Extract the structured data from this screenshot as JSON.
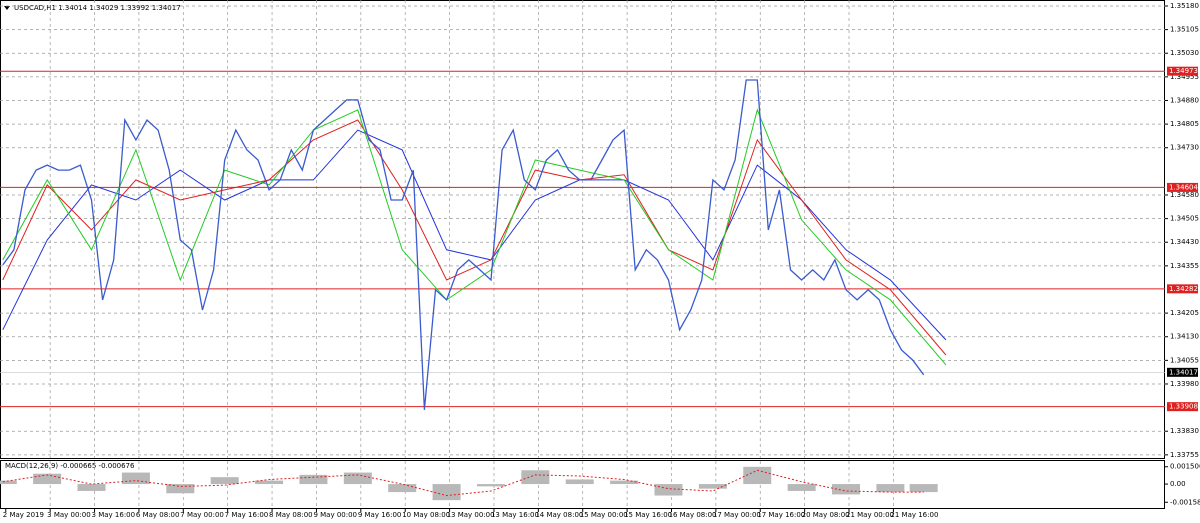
{
  "chart_data": {
    "type": "line",
    "title": "USDCAD,H1  1.34014 1.34029 1.33992 1.34017",
    "xlim": [
      0,
      420
    ],
    "ylim": [
      1.33745,
      1.35199
    ],
    "yticks": [
      {
        "value": 1.3518,
        "label": "1.35180"
      },
      {
        "value": 1.35105,
        "label": "1.35105"
      },
      {
        "value": 1.3503,
        "label": "1.35030"
      },
      {
        "value": 1.34955,
        "label": "1.34955"
      },
      {
        "value": 1.3488,
        "label": "1.34880"
      },
      {
        "value": 1.34805,
        "label": "1.34805"
      },
      {
        "value": 1.3473,
        "label": "1.34730"
      },
      {
        "value": 1.3458,
        "label": "1.34580"
      },
      {
        "value": 1.34505,
        "label": "1.34505"
      },
      {
        "value": 1.3443,
        "label": "1.34430"
      },
      {
        "value": 1.34355,
        "label": "1.34355"
      },
      {
        "value": 1.34205,
        "label": "1.34205"
      },
      {
        "value": 1.3413,
        "label": "1.34130"
      },
      {
        "value": 1.34055,
        "label": "1.34055"
      },
      {
        "value": 1.3398,
        "label": "1.33980"
      },
      {
        "value": 1.3383,
        "label": "1.33830"
      },
      {
        "value": 1.33755,
        "label": "1.33755"
      }
    ],
    "xticks": [
      {
        "value": 1,
        "label": "2 May 2019"
      },
      {
        "value": 17,
        "label": "3 May 00:00"
      },
      {
        "value": 33,
        "label": "3 May 16:00"
      },
      {
        "value": 49,
        "label": "6 May 08:00"
      },
      {
        "value": 65,
        "label": "7 May 00:00"
      },
      {
        "value": 81,
        "label": "7 May 16:00"
      },
      {
        "value": 97,
        "label": "8 May 08:00"
      },
      {
        "value": 113,
        "label": "9 May 00:00"
      },
      {
        "value": 129,
        "label": "9 May 16:00"
      },
      {
        "value": 145,
        "label": "10 May 08:00"
      },
      {
        "value": 161,
        "label": "13 May 00:00"
      },
      {
        "value": 177,
        "label": "13 May 16:00"
      },
      {
        "value": 193,
        "label": "14 May 08:00"
      },
      {
        "value": 209,
        "label": "15 May 00:00"
      },
      {
        "value": 225,
        "label": "15 May 16:00"
      },
      {
        "value": 241,
        "label": "16 May 08:00"
      },
      {
        "value": 257,
        "label": "17 May 00:00"
      },
      {
        "value": 273,
        "label": "17 May 16:00"
      },
      {
        "value": 289,
        "label": "20 May 08:00"
      },
      {
        "value": 305,
        "label": "21 May 00:00"
      },
      {
        "value": 321,
        "label": "21 May 16:00"
      }
    ],
    "grid": true,
    "levels": [
      1.34973,
      1.34604,
      1.34282,
      1.33908
    ],
    "level_color": "#e02020",
    "last_price": 1.34017,
    "x": [
      1,
      5,
      9,
      13,
      17,
      21,
      25,
      29,
      33,
      37,
      41,
      45,
      49,
      53,
      57,
      61,
      65,
      69,
      73,
      77,
      81,
      85,
      89,
      93,
      97,
      101,
      105,
      109,
      113,
      117,
      121,
      125,
      129,
      133,
      137,
      141,
      145,
      149,
      153,
      157,
      161,
      165,
      169,
      173,
      177,
      181,
      185,
      189,
      193,
      197,
      201,
      205,
      209,
      213,
      217,
      221,
      225,
      229,
      233,
      237,
      241,
      245,
      249,
      253,
      257,
      261,
      265,
      269,
      273,
      277,
      281,
      285,
      289,
      293,
      297,
      301,
      305,
      309,
      313,
      317,
      321,
      325,
      329,
      333
    ],
    "series": [
      {
        "name": "USDCAD",
        "color": "#3a5bd0",
        "values": [
          1.34358,
          1.34406,
          1.34596,
          1.34659,
          1.34675,
          1.34659,
          1.34659,
          1.34675,
          1.34564,
          1.34247,
          1.34374,
          1.34818,
          1.34755,
          1.34818,
          1.34786,
          1.34659,
          1.34437,
          1.34406,
          1.34215,
          1.34342,
          1.34691,
          1.34786,
          1.34723,
          1.34691,
          1.34596,
          1.34628,
          1.34723,
          1.34659,
          1.34786,
          1.34818,
          1.3485,
          1.34882,
          1.34882,
          1.34755,
          1.34723,
          1.34564,
          1.34564,
          1.34659,
          1.33898,
          1.34279,
          1.34247,
          1.34342,
          1.34374,
          1.34342,
          1.3431,
          1.34723,
          1.34786,
          1.34628,
          1.34596,
          1.34691,
          1.34723,
          1.34659,
          1.34628,
          1.34628,
          1.34691,
          1.34755,
          1.34786,
          1.34342,
          1.34406,
          1.34374,
          1.3431,
          1.34152,
          1.34215,
          1.3431,
          1.34628,
          1.34596,
          1.34691,
          1.34945,
          1.34945,
          1.34469,
          1.34596,
          1.34342,
          1.3431,
          1.34342,
          1.3431,
          1.34374,
          1.34279,
          1.34247,
          1.34279,
          1.34247,
          1.34152,
          1.34088,
          1.34056,
          1.34009
        ]
      }
    ],
    "ma_x": [
      1,
      17,
      33,
      49,
      65,
      81,
      97,
      113,
      129,
      145,
      161,
      177,
      193,
      209,
      225,
      241,
      257,
      273,
      289,
      305,
      321,
      341
    ],
    "ma_series": [
      {
        "color": "#2233dd",
        "values": [
          1.34152,
          1.34437,
          1.34612,
          1.34564,
          1.34659,
          1.34564,
          1.34628,
          1.34628,
          1.34786,
          1.34723,
          1.34406,
          1.34374,
          1.34564,
          1.34628,
          1.34628,
          1.34564,
          1.34374,
          1.34675,
          1.34564,
          1.34406,
          1.3431,
          1.3412
        ]
      },
      {
        "color": "#e02020",
        "values": [
          1.3431,
          1.34612,
          1.34469,
          1.34628,
          1.34564,
          1.34596,
          1.34628,
          1.34755,
          1.34818,
          1.34596,
          1.3431,
          1.34374,
          1.34659,
          1.34628,
          1.34644,
          1.34406,
          1.34342,
          1.34755,
          1.34564,
          1.34374,
          1.34279,
          1.34072
        ]
      },
      {
        "color": "#22cc22",
        "values": [
          1.34374,
          1.34628,
          1.34406,
          1.34723,
          1.3431,
          1.34659,
          1.34612,
          1.34786,
          1.3485,
          1.34406,
          1.34247,
          1.34342,
          1.34691,
          1.34659,
          1.34628,
          1.34406,
          1.3431,
          1.3485,
          1.34501,
          1.34342,
          1.34247,
          1.34041
        ]
      }
    ],
    "macd": {
      "label": "MACD(12,26,9) -0.000665 -0.000676",
      "ylim": [
        -0.00217,
        0.002006
      ],
      "yticks": [
        0.001506,
        {
          "value": 0,
          "label": "0.00"
        },
        -0.001584
      ],
      "x": [
        1,
        17,
        33,
        49,
        65,
        81,
        97,
        113,
        129,
        145,
        161,
        177,
        193,
        209,
        225,
        241,
        257,
        273,
        289,
        305,
        321,
        333
      ],
      "histogram": {
        "color": "#b8b8b8",
        "values": [
          0.0003,
          0.0009,
          -0.0006,
          0.001,
          -0.0008,
          0.0006,
          0.0003,
          0.0008,
          0.001,
          -0.0007,
          -0.0014,
          -0.0002,
          0.0012,
          0.0004,
          0.0003,
          -0.001,
          -0.0004,
          0.0015,
          -0.0006,
          -0.0009,
          -0.0007,
          -0.0007
        ]
      },
      "signal": {
        "color": "#e02020",
        "values": [
          0.0002,
          0.0008,
          0,
          0.0003,
          -0.0002,
          -0.0001,
          0.0004,
          0.0006,
          0.0008,
          0,
          -0.001,
          -0.0006,
          0.0008,
          0.0007,
          0.0004,
          -0.0004,
          -0.0006,
          0.0012,
          0.0002,
          -0.0006,
          -0.0007,
          -0.0007
        ]
      }
    }
  }
}
